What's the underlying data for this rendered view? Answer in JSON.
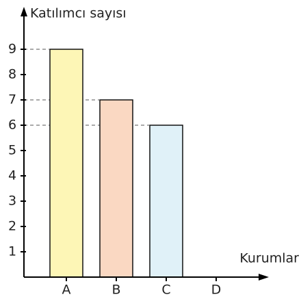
{
  "chart_data": {
    "type": "bar",
    "y_label": "Katılımcı sayısı",
    "x_label": "Kurumlar",
    "categories": [
      "A",
      "B",
      "C",
      "D"
    ],
    "values": [
      9,
      7,
      6,
      null
    ],
    "colors": [
      "#fdf6b6",
      "#fad8c2",
      "#e0f1f8",
      "#ffffff"
    ],
    "ylim": [
      0,
      10.5
    ],
    "yticks": [
      1,
      2,
      3,
      4,
      5,
      6,
      7,
      8,
      9
    ],
    "grid": false
  }
}
